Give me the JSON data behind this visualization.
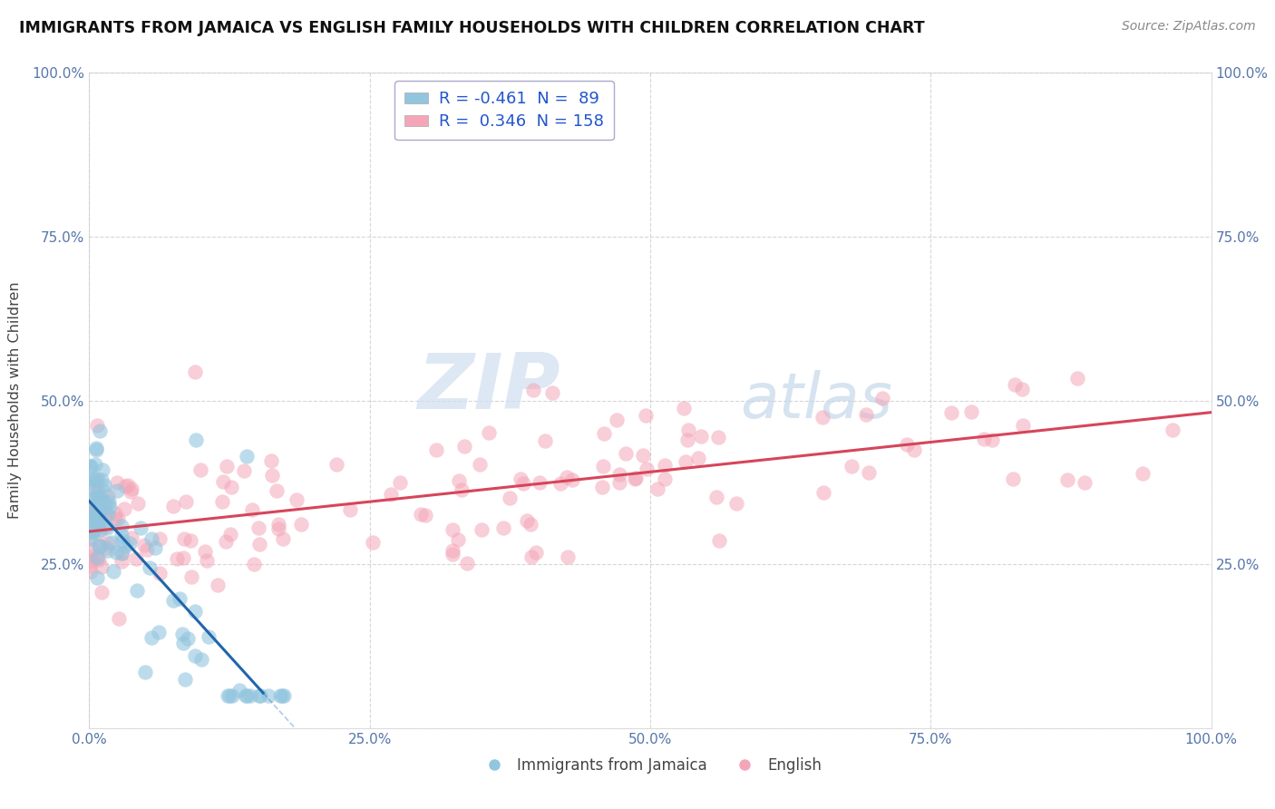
{
  "title": "IMMIGRANTS FROM JAMAICA VS ENGLISH FAMILY HOUSEHOLDS WITH CHILDREN CORRELATION CHART",
  "source": "Source: ZipAtlas.com",
  "ylabel": "Family Households with Children",
  "r1": -0.461,
  "n1": 89,
  "r2": 0.346,
  "n2": 158,
  "color_blue": "#92c5de",
  "color_pink": "#f4a6b8",
  "line_blue": "#2166ac",
  "line_pink": "#d6455a",
  "bg_color": "#ffffff",
  "grid_color": "#bbbbbb",
  "legend_label1": "Immigrants from Jamaica",
  "legend_label2": "English",
  "watermark_zip": "ZIP",
  "watermark_atlas": "atlas",
  "xlim": [
    0.0,
    1.0
  ],
  "ylim": [
    0.0,
    1.0
  ],
  "xticks": [
    0.0,
    0.25,
    0.5,
    0.75,
    1.0
  ],
  "yticks": [
    0.0,
    0.25,
    0.5,
    0.75,
    1.0
  ],
  "xticklabels": [
    "0.0%",
    "25.0%",
    "50.0%",
    "75.0%",
    "100.0%"
  ],
  "yticklabels": [
    "",
    "25.0%",
    "50.0%",
    "75.0%",
    "100.0%"
  ],
  "right_yticklabels": [
    "",
    "25.0%",
    "50.0%",
    "75.0%",
    "100.0%"
  ]
}
